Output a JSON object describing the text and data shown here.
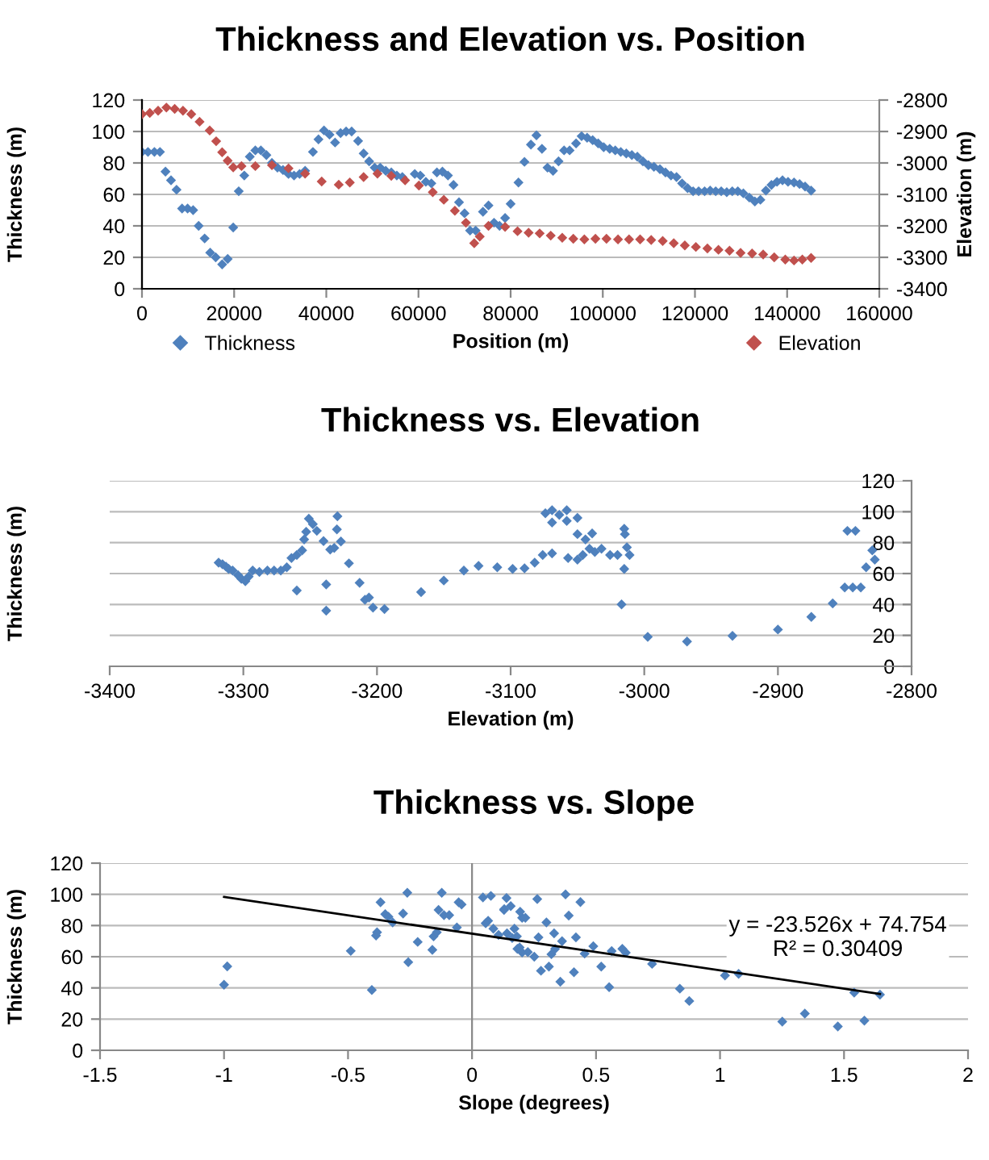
{
  "chart_data": [
    {
      "type": "scatter",
      "title": "Thickness and Elevation vs. Position",
      "xlabel": "Position (m)",
      "ylabel": "Thickness (m)",
      "y2label": "Elevation (m)",
      "xlim": [
        0,
        160000
      ],
      "xticks": [
        0,
        20000,
        40000,
        60000,
        80000,
        100000,
        120000,
        140000,
        160000
      ],
      "ylim": [
        0,
        120
      ],
      "yticks": [
        0,
        20,
        40,
        60,
        80,
        100,
        120
      ],
      "y2lim": [
        -3400,
        -2800
      ],
      "y2ticks": [
        -3400,
        -3300,
        -3200,
        -3100,
        -3000,
        -2900,
        -2800
      ],
      "grid": "y",
      "legend": "bottom",
      "marker": "diamond",
      "series": [
        {
          "name": "Thickness",
          "color": "#4f81bd",
          "x": [
            0,
            1300,
            2700,
            3900,
            5100,
            6300,
            7500,
            8700,
            9900,
            11100,
            12300,
            13600,
            14800,
            16000,
            17400,
            18600,
            19800,
            21000,
            22200,
            23400,
            24600,
            25800,
            27000,
            28200,
            29400,
            30600,
            31800,
            33000,
            34200,
            35400,
            37100,
            38300,
            39500,
            40700,
            41900,
            43100,
            44300,
            45500,
            46900,
            48100,
            49300,
            50500,
            51700,
            52900,
            54100,
            55300,
            56500,
            59200,
            60400,
            61600,
            62800,
            64000,
            65200,
            66400,
            67600,
            68800,
            70000,
            71200,
            72400,
            74000,
            75200,
            76400,
            77600,
            78800,
            80000,
            81700,
            83000,
            84400,
            85600,
            86800,
            88000,
            89200,
            90400,
            91600,
            92800,
            94200,
            95400,
            96600,
            97800,
            99000,
            100200,
            101500,
            102700,
            103900,
            105100,
            106300,
            107500,
            108700,
            109900,
            111100,
            112400,
            113600,
            114800,
            116000,
            117200,
            118400,
            119600,
            120800,
            122100,
            123300,
            124500,
            125700,
            126900,
            128100,
            129300,
            130500,
            131800,
            133000,
            134200,
            135400,
            136600,
            137800,
            139000,
            140200,
            141500,
            142700,
            143900,
            145200
          ],
          "values": [
            87,
            87,
            87,
            87,
            74.5,
            69,
            63,
            51,
            51,
            50,
            40,
            32,
            23,
            20,
            15.5,
            19,
            39,
            62,
            72,
            84,
            88,
            88,
            85,
            80,
            77,
            75.5,
            73,
            72,
            73,
            75,
            87,
            95,
            100.7,
            98,
            93,
            99,
            100,
            100,
            94,
            86,
            81,
            77,
            77,
            75,
            74,
            72,
            71,
            73,
            72,
            68,
            67,
            74,
            74.5,
            72,
            66,
            55,
            48,
            37,
            37,
            49,
            53,
            42,
            40,
            45,
            54,
            67.6,
            80.7,
            91.7,
            97.6,
            89,
            77,
            75,
            81,
            88,
            88,
            92.4,
            97,
            96,
            94.5,
            92.4,
            90,
            89,
            88,
            87,
            86,
            85,
            84,
            81,
            78.6,
            77.6,
            76,
            74,
            72,
            71,
            67,
            64,
            62,
            62,
            62,
            62.4,
            62,
            62,
            61.4,
            62,
            62,
            60.7,
            58,
            55.5,
            56.6,
            62.4,
            66,
            68,
            69,
            68,
            67.6,
            66.6,
            65,
            62.4
          ]
        },
        {
          "name": "Elevation",
          "color": "#c0504d",
          "axis": "y2",
          "x": [
            0,
            1700,
            3500,
            5300,
            7100,
            8900,
            10700,
            12500,
            14700,
            16100,
            17400,
            18600,
            19800,
            21600,
            24600,
            28200,
            31800,
            35400,
            39000,
            42700,
            45100,
            48100,
            51100,
            54100,
            57100,
            60100,
            63100,
            65500,
            67900,
            70300,
            72100,
            73300,
            75200,
            78800,
            81500,
            83900,
            86300,
            88700,
            91200,
            93600,
            96000,
            98400,
            100800,
            103300,
            105700,
            108100,
            110500,
            113000,
            115400,
            117800,
            120200,
            122700,
            125100,
            127500,
            129900,
            132400,
            134800,
            137200,
            139600,
            141500,
            143300,
            145200
          ],
          "values": [
            -2845,
            -2841,
            -2834,
            -2824,
            -2828,
            -2834,
            -2845,
            -2869,
            -2897,
            -2931,
            -2966,
            -2993,
            -3014,
            -3010,
            -3010,
            -3007,
            -3017,
            -3034,
            -3059,
            -3069,
            -3062,
            -3045,
            -3034,
            -3041,
            -3055,
            -3072,
            -3093,
            -3117,
            -3152,
            -3190,
            -3255,
            -3234,
            -3200,
            -3203,
            -3217,
            -3222,
            -3224,
            -3231,
            -3238,
            -3241,
            -3243,
            -3241,
            -3241,
            -3243,
            -3243,
            -3243,
            -3245,
            -3248,
            -3255,
            -3262,
            -3267,
            -3272,
            -3276,
            -3279,
            -3286,
            -3288,
            -3291,
            -3300,
            -3307,
            -3310,
            -3307,
            -3302
          ]
        }
      ]
    },
    {
      "type": "scatter",
      "title": "Thickness vs. Elevation",
      "xlabel": "Elevation (m)",
      "ylabel": "Thickness (m)",
      "xlim": [
        -3400,
        -2800
      ],
      "xticks": [
        -3400,
        -3300,
        -3200,
        -3100,
        -3000,
        -2900,
        -2800
      ],
      "ylim": [
        0,
        120
      ],
      "yticks": [
        0,
        20,
        40,
        60,
        80,
        100,
        120
      ],
      "grid": "y",
      "marker": "diamond",
      "series": [
        {
          "color": "#4f81bd",
          "x": [
            -3318.5,
            -3315.6,
            -3313,
            -3311,
            -3308,
            -3304,
            -3301.5,
            -3298.5,
            -3296,
            -3293,
            -3288,
            -3282,
            -3277,
            -3272,
            -3267.5,
            -3264,
            -3260,
            -3256,
            -3254.5,
            -3253,
            -3251,
            -3248,
            -3245,
            -3260,
            -3240,
            -3238,
            -3238,
            -3235,
            -3232,
            -3230,
            -3229.6,
            -3227,
            -3221,
            -3213,
            -3209,
            -3206,
            -3203,
            -3194.4,
            -3167,
            -3150,
            -3135,
            -3124,
            -3110,
            -3098.5,
            -3089.6,
            -3082,
            -3076,
            -3069,
            -3074,
            -3069,
            -3069,
            -3063.6,
            -3058,
            -3058,
            -3057,
            -3050,
            -3050,
            -3050,
            -3046,
            -3044,
            -3041,
            -3039,
            -3037,
            -3032,
            -3025.6,
            -3020,
            -3015,
            -3014.5,
            -3013,
            -3015,
            -3017,
            -3011,
            -2997.4,
            -2968,
            -2934,
            -2900,
            -2875,
            -2859,
            -2850,
            -2844,
            -2838,
            -2848,
            -2842,
            -2834,
            -2829.4,
            -2827.5
          ],
          "values": [
            67,
            66,
            64.5,
            63,
            62,
            59,
            56.6,
            55,
            58,
            62,
            61,
            62,
            62,
            62,
            64,
            70,
            72,
            75,
            82,
            87,
            95.5,
            92,
            87.6,
            49,
            81,
            53,
            36,
            75.5,
            76.6,
            88.6,
            97,
            80.7,
            66.6,
            54,
            43,
            44.5,
            38,
            37,
            48,
            55.5,
            62,
            65,
            64,
            63,
            63.4,
            67,
            72,
            73,
            99,
            101,
            93,
            98,
            101,
            94,
            70,
            69,
            96,
            85.5,
            72,
            82,
            76,
            86,
            74,
            76,
            72,
            72,
            89,
            85.5,
            77,
            63,
            40,
            72,
            19,
            16,
            19.7,
            23.8,
            32,
            40.7,
            51,
            51,
            51,
            87.6,
            87.6,
            64,
            75,
            69
          ]
        }
      ]
    },
    {
      "type": "scatter",
      "title": "Thickness vs. Slope",
      "xlabel": "Slope (degrees)",
      "ylabel": "Thickness (m)",
      "xlim": [
        -1.5,
        2
      ],
      "xticks": [
        -1.5,
        -1,
        -0.5,
        0,
        0.5,
        1,
        1.5,
        2
      ],
      "ylim": [
        0,
        120
      ],
      "yticks": [
        0,
        20,
        40,
        60,
        80,
        100,
        120
      ],
      "grid": "y",
      "marker": "diamond",
      "annotations": [
        "y = -23.526x + 74.754\nR² = 0.30409"
      ],
      "series": [
        {
          "color": "#4f81bd",
          "x": [
            -1.0,
            -0.987,
            -0.489,
            -0.404,
            -0.387,
            -0.383,
            -0.369,
            -0.35,
            -0.337,
            -0.32,
            -0.278,
            -0.261,
            -0.257,
            -0.219,
            -0.16,
            -0.155,
            -0.142,
            -0.135,
            -0.122,
            -0.113,
            -0.092,
            -0.061,
            -0.054,
            -0.042,
            0.044,
            0.076,
            0.065,
            0.055,
            0.086,
            0.107,
            0.129,
            0.139,
            0.156,
            0.171,
            0.181,
            0.192,
            0.202,
            0.202,
            0.13,
            0.141,
            0.162,
            0.183,
            0.194,
            0.215,
            0.225,
            0.251,
            0.263,
            0.268,
            0.278,
            0.3,
            0.31,
            0.32,
            0.331,
            0.335,
            0.356,
            0.363,
            0.377,
            0.39,
            0.411,
            0.419,
            0.437,
            0.454,
            0.489,
            0.521,
            0.553,
            0.563,
            0.606,
            0.62,
            0.726,
            0.838,
            0.876,
            1.02,
            1.075,
            1.251,
            1.342,
            1.475,
            1.541,
            1.582,
            1.645
          ],
          "values": [
            42,
            53.8,
            63.7,
            38.7,
            73.6,
            75.7,
            94.9,
            87.3,
            85.6,
            82,
            87.7,
            101,
            56.5,
            69.5,
            64.4,
            73,
            75.7,
            90,
            101,
            86.6,
            86.6,
            78.8,
            94.9,
            93.5,
            98,
            99,
            83,
            81.5,
            78,
            74,
            90,
            97.6,
            92.5,
            78,
            73,
            66,
            62.7,
            85,
            90.5,
            75,
            72,
            65,
            88.8,
            85,
            63,
            60,
            97,
            72.4,
            51,
            82,
            53.7,
            61.6,
            75,
            65,
            44,
            70,
            100,
            86.4,
            50,
            72.4,
            95,
            62,
            66.7,
            53.7,
            40.5,
            63.6,
            65,
            62.6,
            55.4,
            39.5,
            31.6,
            48,
            49,
            18.4,
            23.5,
            15.3,
            37,
            19,
            35.7
          ]
        },
        {
          "type": "line",
          "color": "#000000",
          "marker": "none",
          "x": [
            -1,
            1.645
          ],
          "values": [
            98.3,
            36.1
          ]
        }
      ]
    }
  ]
}
